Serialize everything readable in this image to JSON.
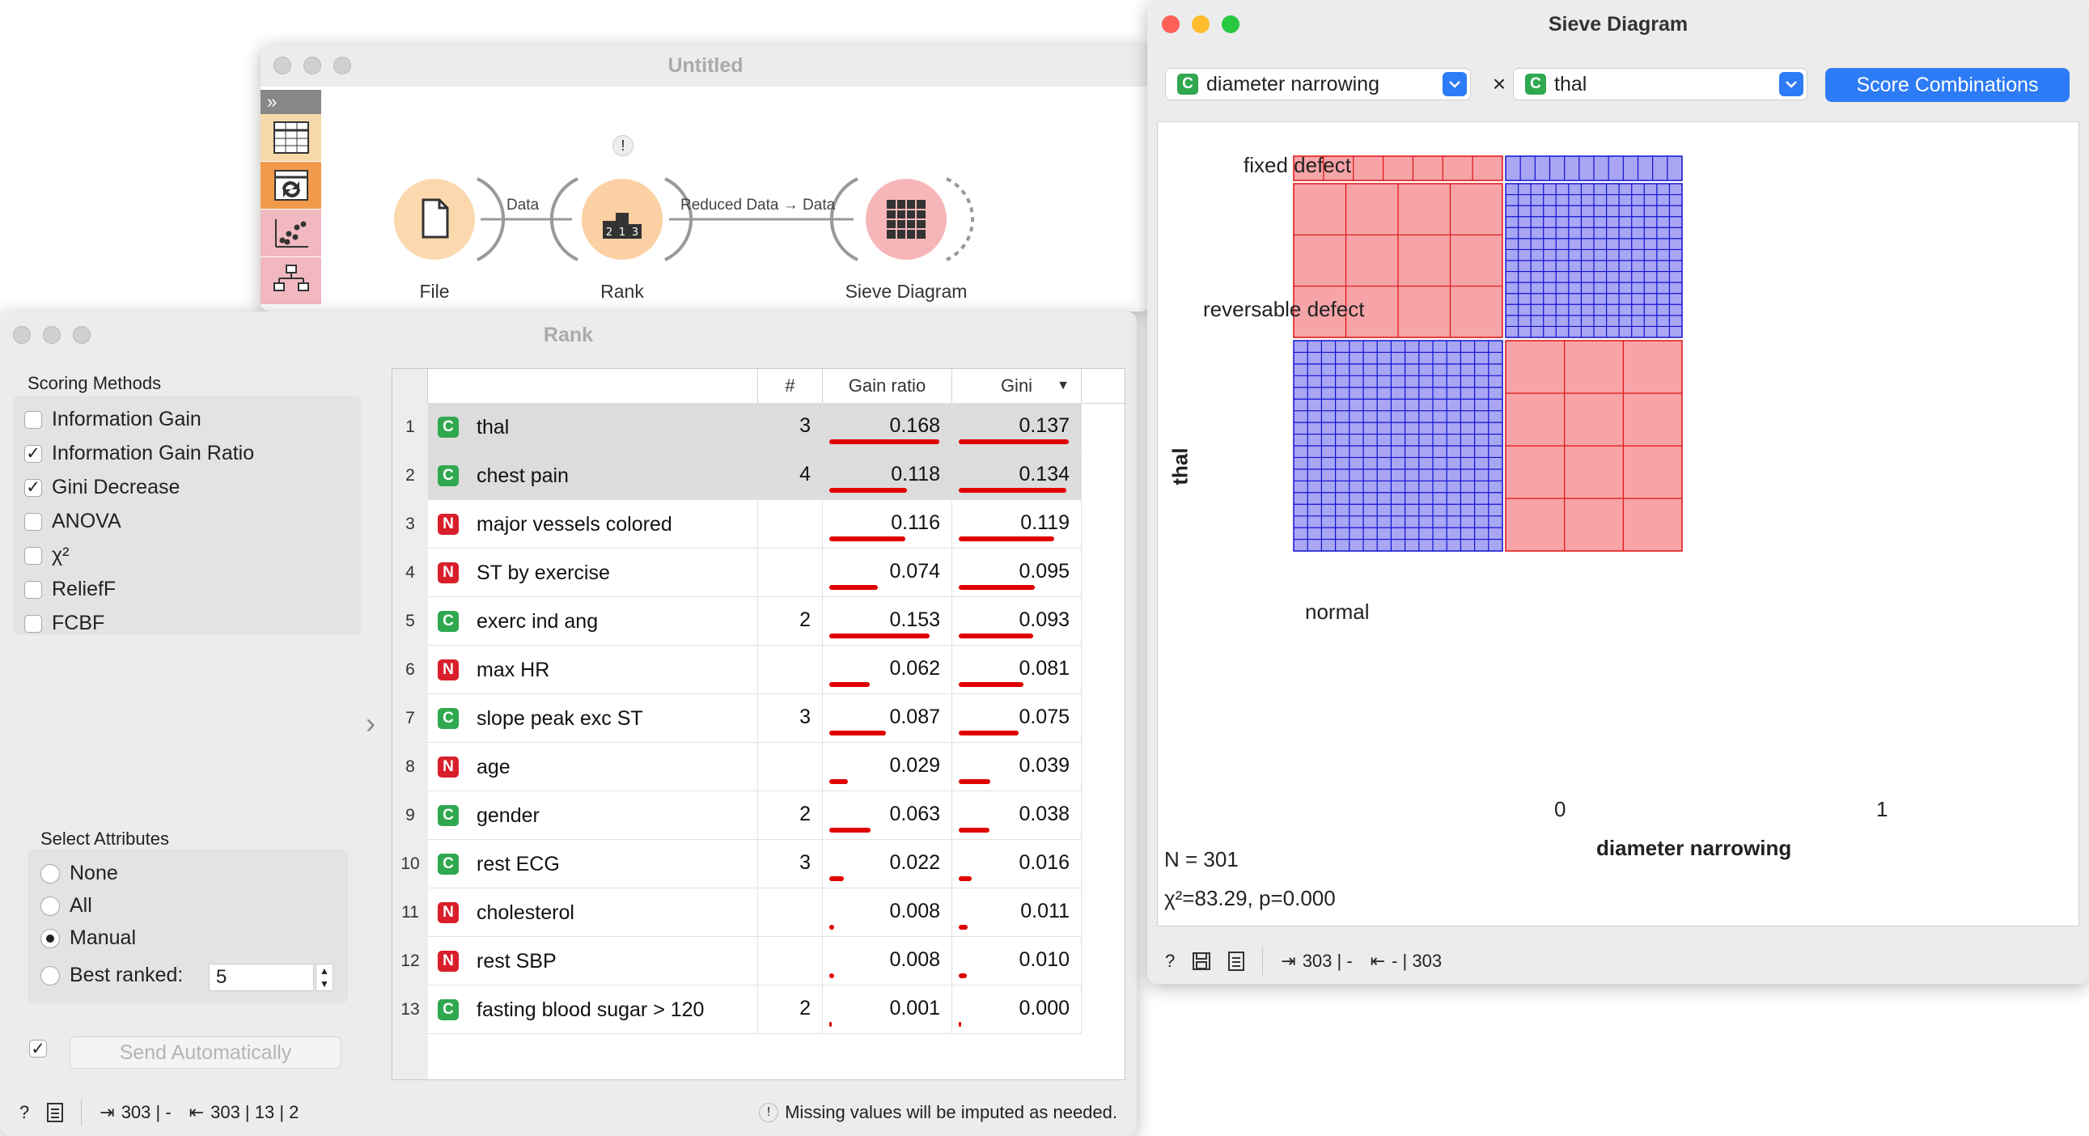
{
  "canvas_window": {
    "title": "Untitled",
    "nodes": [
      {
        "label": "File"
      },
      {
        "label": "Rank",
        "warning": "!"
      },
      {
        "label": "Sieve Diagram"
      }
    ],
    "links": [
      "Data",
      "Reduced Data → Data"
    ],
    "toolbox_icons": [
      "data-table-icon",
      "transform-icon",
      "scatter-icon",
      "tree-icon"
    ],
    "toolbox_colors": [
      "#f7d8a8",
      "#f29a4b",
      "#f2b8c0",
      "#f2b8c0"
    ]
  },
  "rank_window": {
    "title": "Rank",
    "scoring": {
      "title": "Scoring Methods",
      "methods": [
        {
          "label": "Information Gain",
          "checked": false
        },
        {
          "label": "Information Gain Ratio",
          "checked": true
        },
        {
          "label": "Gini Decrease",
          "checked": true
        },
        {
          "label": "ANOVA",
          "checked": false
        },
        {
          "label": "χ²",
          "checked": false
        },
        {
          "label": "ReliefF",
          "checked": false
        },
        {
          "label": "FCBF",
          "checked": false
        }
      ]
    },
    "select": {
      "title": "Select Attributes",
      "options": [
        {
          "label": "None",
          "checked": false
        },
        {
          "label": "All",
          "checked": false
        },
        {
          "label": "Manual",
          "checked": true
        },
        {
          "label": "Best ranked:",
          "checked": false
        }
      ],
      "best_ranked_value": "5"
    },
    "send_automatically": {
      "checked": true,
      "label": "Send Automatically"
    },
    "table": {
      "headers": {
        "hash": "#",
        "gain_ratio": "Gain ratio",
        "gini": "Gini"
      },
      "rows": [
        {
          "n": "1",
          "type": "C",
          "name": "thal",
          "count": "3",
          "gain_ratio": "0.168",
          "gini": "0.137",
          "selected": true
        },
        {
          "n": "2",
          "type": "C",
          "name": "chest pain",
          "count": "4",
          "gain_ratio": "0.118",
          "gini": "0.134",
          "selected": true
        },
        {
          "n": "3",
          "type": "N",
          "name": "major vessels colored",
          "count": "",
          "gain_ratio": "0.116",
          "gini": "0.119",
          "selected": false
        },
        {
          "n": "4",
          "type": "N",
          "name": "ST by exercise",
          "count": "",
          "gain_ratio": "0.074",
          "gini": "0.095",
          "selected": false
        },
        {
          "n": "5",
          "type": "C",
          "name": "exerc ind ang",
          "count": "2",
          "gain_ratio": "0.153",
          "gini": "0.093",
          "selected": false
        },
        {
          "n": "6",
          "type": "N",
          "name": "max HR",
          "count": "",
          "gain_ratio": "0.062",
          "gini": "0.081",
          "selected": false
        },
        {
          "n": "7",
          "type": "C",
          "name": "slope peak exc ST",
          "count": "3",
          "gain_ratio": "0.087",
          "gini": "0.075",
          "selected": false
        },
        {
          "n": "8",
          "type": "N",
          "name": "age",
          "count": "",
          "gain_ratio": "0.029",
          "gini": "0.039",
          "selected": false
        },
        {
          "n": "9",
          "type": "C",
          "name": "gender",
          "count": "2",
          "gain_ratio": "0.063",
          "gini": "0.038",
          "selected": false
        },
        {
          "n": "10",
          "type": "C",
          "name": "rest ECG",
          "count": "3",
          "gain_ratio": "0.022",
          "gini": "0.016",
          "selected": false
        },
        {
          "n": "11",
          "type": "N",
          "name": "cholesterol",
          "count": "",
          "gain_ratio": "0.008",
          "gini": "0.011",
          "selected": false
        },
        {
          "n": "12",
          "type": "N",
          "name": "rest SBP",
          "count": "",
          "gain_ratio": "0.008",
          "gini": "0.010",
          "selected": false
        },
        {
          "n": "13",
          "type": "C",
          "name": "fasting blood sugar > 120",
          "count": "2",
          "gain_ratio": "0.001",
          "gini": "0.000",
          "selected": false
        }
      ]
    },
    "status": {
      "input": "303 | -",
      "output": "303 | 13 | 2",
      "warning": "Missing values will be imputed as needed."
    }
  },
  "sieve_window": {
    "title": "Sieve Diagram",
    "x_attr": "diameter narrowing",
    "y_attr": "thal",
    "times": "×",
    "score_button": "Score Combinations",
    "y_categories": [
      "fixed defect",
      "reversable defect",
      "normal"
    ],
    "x_categories": [
      "0",
      "1"
    ],
    "x_axis_label": "diameter narrowing",
    "y_axis_label": "thal",
    "n_text": "N = 301",
    "chi_text": "χ²=83.29, p=0.000",
    "status": {
      "input": "303 | -",
      "output": "- | 303"
    },
    "colors": {
      "under": "#f6a4a8",
      "over": "#a9a6f4",
      "under_line": "#e01010",
      "over_line": "#1010d0"
    }
  }
}
